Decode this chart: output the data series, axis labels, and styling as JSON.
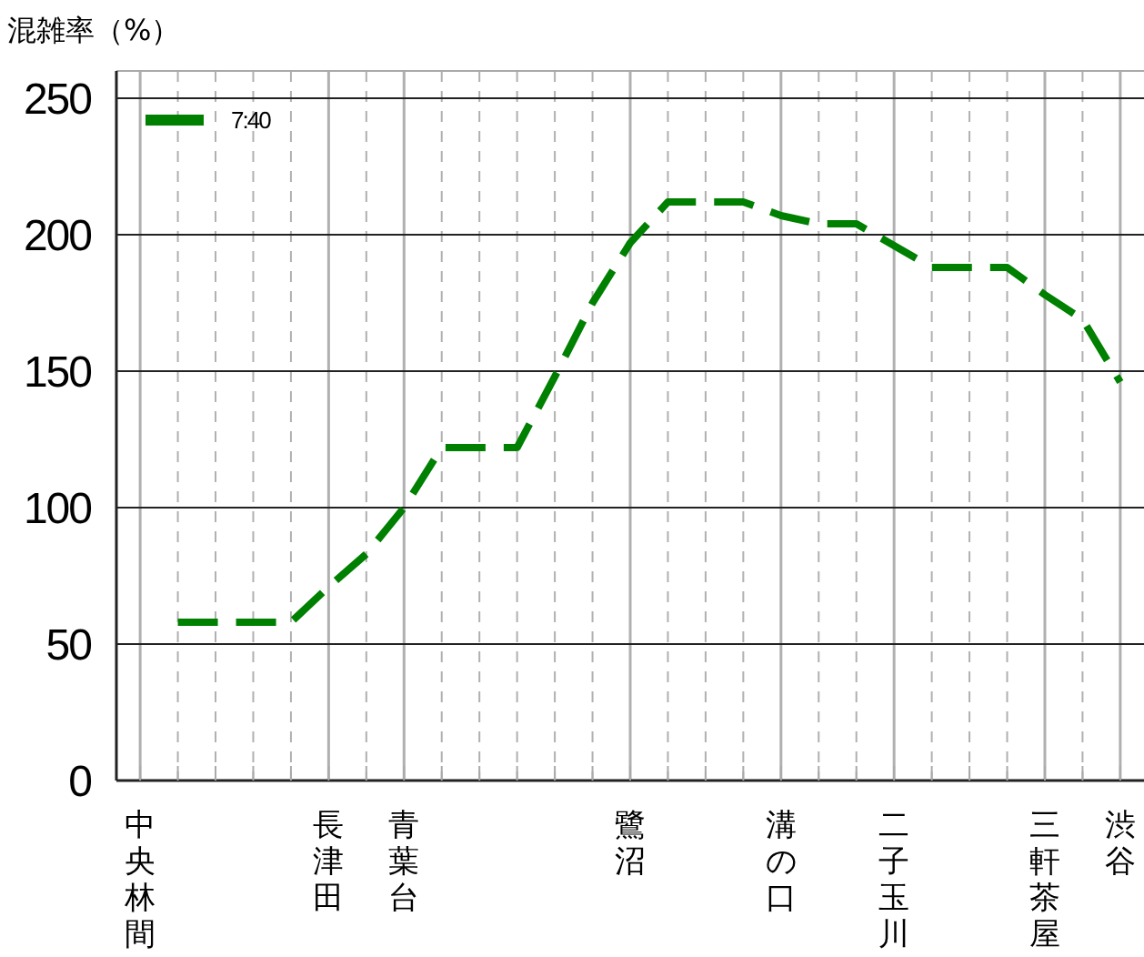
{
  "chart_data": {
    "type": "line",
    "ylabel": "混雑率（%）",
    "categories": [
      "中央林間",
      null,
      null,
      null,
      null,
      "長津田",
      null,
      "青葉台",
      null,
      null,
      null,
      null,
      null,
      "鷺沼",
      null,
      null,
      null,
      "溝の口",
      null,
      null,
      "二子玉川",
      null,
      null,
      null,
      "三軒茶屋",
      null,
      "渋谷"
    ],
    "series": [
      {
        "name": "7:40",
        "color": "#008000",
        "values": [
          null,
          58,
          58,
          58,
          58,
          71,
          83,
          100,
          122,
          122,
          122,
          148,
          175,
          197,
          212,
          212,
          212,
          207,
          204,
          204,
          196,
          188,
          188,
          188,
          178,
          169,
          146
        ]
      }
    ],
    "ylim": [
      0,
      260
    ],
    "yticks": [
      0,
      50,
      100,
      150,
      200,
      250
    ],
    "grid": true,
    "legend": "top left",
    "line_style": "dashed",
    "marker": "none"
  }
}
